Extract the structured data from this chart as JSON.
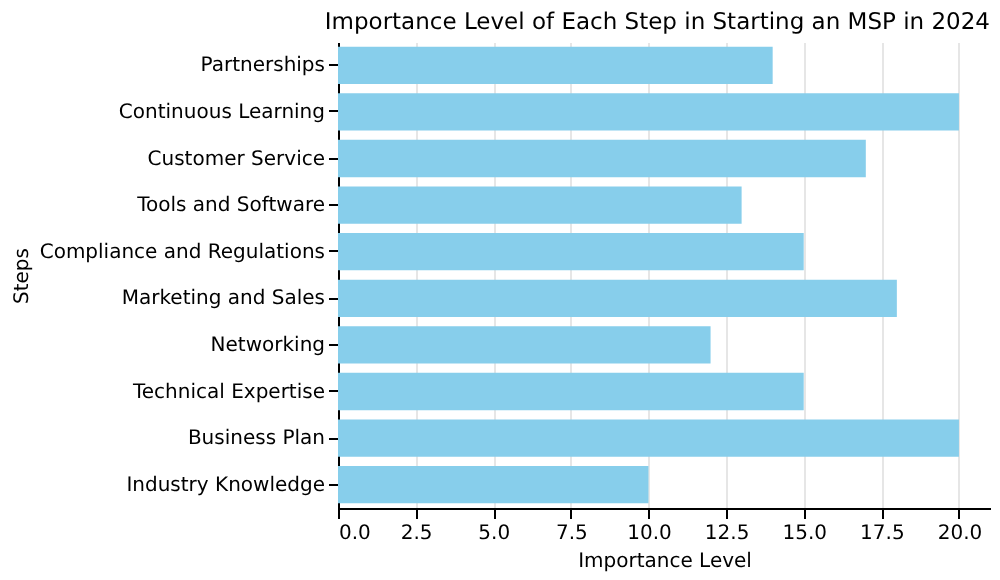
{
  "chart_data": {
    "type": "bar",
    "orientation": "horizontal",
    "title": "Importance Level of Each Step in Starting an MSP in 2024",
    "xlabel": "Importance Level",
    "ylabel": "Steps",
    "categories": [
      "Partnerships",
      "Continuous Learning",
      "Customer Service",
      "Tools and Software",
      "Compliance and Regulations",
      "Marketing and Sales",
      "Networking",
      "Technical Expertise",
      "Business Plan",
      "Industry Knowledge"
    ],
    "values": [
      14,
      20,
      17,
      13,
      15,
      18,
      12,
      15,
      20,
      10
    ],
    "color": "#87ceeb",
    "xlim": [
      0,
      21
    ],
    "xticks": [
      {
        "value": 0,
        "label": "0.0"
      },
      2.5,
      {
        "value": 5,
        "label": "5.0"
      },
      7.5,
      {
        "value": 10,
        "label": "10.0"
      },
      12.5,
      {
        "value": 15,
        "label": "15.0"
      },
      17.5,
      {
        "value": 20,
        "label": "20.0"
      }
    ],
    "grid": "x"
  }
}
